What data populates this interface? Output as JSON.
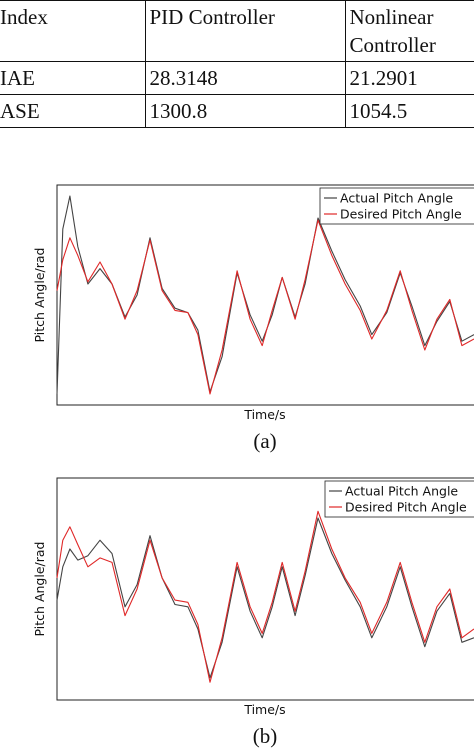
{
  "table": {
    "header": [
      "Index",
      "PID Controller",
      "Nonlinear Controller"
    ],
    "rows": [
      [
        "IAE",
        "28.3148",
        "21.2901"
      ],
      [
        "ASE",
        "1300.8",
        "1054.5"
      ]
    ]
  },
  "chart_data": [
    {
      "type": "line",
      "caption": "(a)",
      "x_label": "Time/s",
      "y_label": "Pitch Angle/rad",
      "xlim": [
        0,
        100
      ],
      "ylim": [
        0,
        100
      ],
      "x": [
        0,
        1.4,
        3.1,
        5,
        7.4,
        10.3,
        13.2,
        16.3,
        19.2,
        22.3,
        25.2,
        28.3,
        31.4,
        33.8,
        36.7,
        39.6,
        43.2,
        46.3,
        49.2,
        51.6,
        54,
        57.1,
        59.5,
        62.6,
        65.9,
        69.1,
        72.7,
        75.5,
        79.1,
        82.3,
        85.1,
        88.2,
        91.1,
        94.2,
        97.1,
        100
      ],
      "series": [
        {
          "name": "Actual Pitch Angle",
          "color": "#444444",
          "values": [
            5,
            80,
            95,
            72,
            55,
            62,
            55,
            40,
            50,
            76,
            53,
            44,
            42,
            34,
            6,
            22,
            60,
            41,
            29,
            41,
            58,
            40,
            55,
            85,
            70,
            57,
            45,
            32,
            42,
            60,
            45,
            27,
            38,
            47,
            29,
            32
          ]
        },
        {
          "name": "Desired Pitch Angle",
          "color": "#e02828",
          "values": [
            52,
            66,
            76,
            68,
            56,
            65,
            55,
            39,
            52,
            75,
            52,
            43,
            42,
            32,
            5,
            25,
            61,
            39,
            27,
            43,
            58,
            39,
            57,
            84,
            68,
            55,
            43,
            30,
            43,
            61,
            43,
            25,
            39,
            48,
            27,
            30
          ]
        }
      ]
    },
    {
      "type": "line",
      "caption": "(b)",
      "x_label": "Time/s",
      "y_label": "Pitch Angle/rad",
      "xlim": [
        0,
        100
      ],
      "ylim": [
        0,
        100
      ],
      "x": [
        0,
        1.4,
        3.1,
        5,
        7.4,
        10.3,
        13.2,
        16.3,
        19.2,
        22.3,
        25.2,
        28.3,
        31.4,
        33.8,
        36.7,
        39.6,
        43.2,
        46.3,
        49.2,
        51.6,
        54,
        57.1,
        59.5,
        62.6,
        65.9,
        69.1,
        72.7,
        75.5,
        79.1,
        82.3,
        85.1,
        88.2,
        91.1,
        94.2,
        97.1,
        100
      ],
      "series": [
        {
          "name": "Actual Pitch Angle",
          "color": "#444444",
          "values": [
            45,
            60,
            68,
            63,
            65,
            72,
            66,
            42,
            52,
            74,
            55,
            43,
            42,
            32,
            10,
            26,
            60,
            40,
            28,
            42,
            60,
            38,
            56,
            82,
            66,
            54,
            42,
            28,
            42,
            60,
            42,
            24,
            40,
            48,
            26,
            28
          ]
        },
        {
          "name": "Desired Pitch Angle",
          "color": "#e02828",
          "values": [
            55,
            72,
            78,
            70,
            60,
            64,
            62,
            38,
            50,
            72,
            55,
            45,
            44,
            34,
            8,
            28,
            62,
            42,
            30,
            44,
            62,
            40,
            58,
            85,
            68,
            55,
            44,
            30,
            44,
            62,
            44,
            26,
            42,
            50,
            28,
            32
          ]
        }
      ]
    }
  ]
}
